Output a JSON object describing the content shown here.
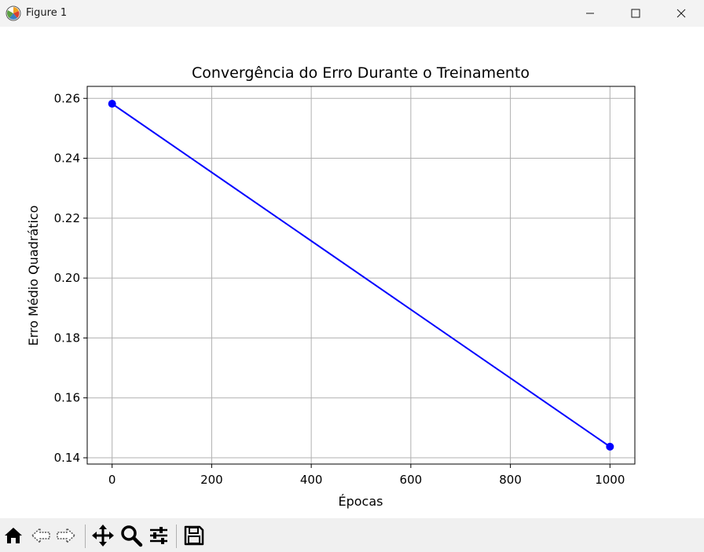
{
  "window": {
    "title": "Figure 1",
    "buttons": [
      "minimize-icon",
      "maximize-icon",
      "close-icon"
    ]
  },
  "toolbar": {
    "items": [
      "home-icon",
      "back-arrow-icon",
      "forward-arrow-icon",
      "pan-move-icon",
      "zoom-magnifier-icon",
      "configure-subplots-icon",
      "save-floppy-icon"
    ]
  },
  "chart_data": {
    "type": "line",
    "title": "Convergência do Erro Durante o Treinamento",
    "xlabel": "Épocas",
    "ylabel": "Erro Médio Quadrático",
    "x": [
      0,
      1000
    ],
    "series": [
      {
        "values": [
          0.2582,
          0.1437
        ],
        "color": "#0000ff",
        "marker": "circle"
      }
    ],
    "xlim": [
      -50,
      1050
    ],
    "ylim": [
      0.1379,
      0.264
    ],
    "xticks": [
      0,
      200,
      400,
      600,
      800,
      1000
    ],
    "xtick_labels": [
      "0",
      "200",
      "400",
      "600",
      "800",
      "1000"
    ],
    "yticks": [
      0.14,
      0.16,
      0.18,
      0.2,
      0.22,
      0.24,
      0.26
    ],
    "ytick_labels": [
      "0.14",
      "0.16",
      "0.18",
      "0.20",
      "0.22",
      "0.24",
      "0.26"
    ],
    "grid": true,
    "grid_color": "#b0b0b0"
  }
}
